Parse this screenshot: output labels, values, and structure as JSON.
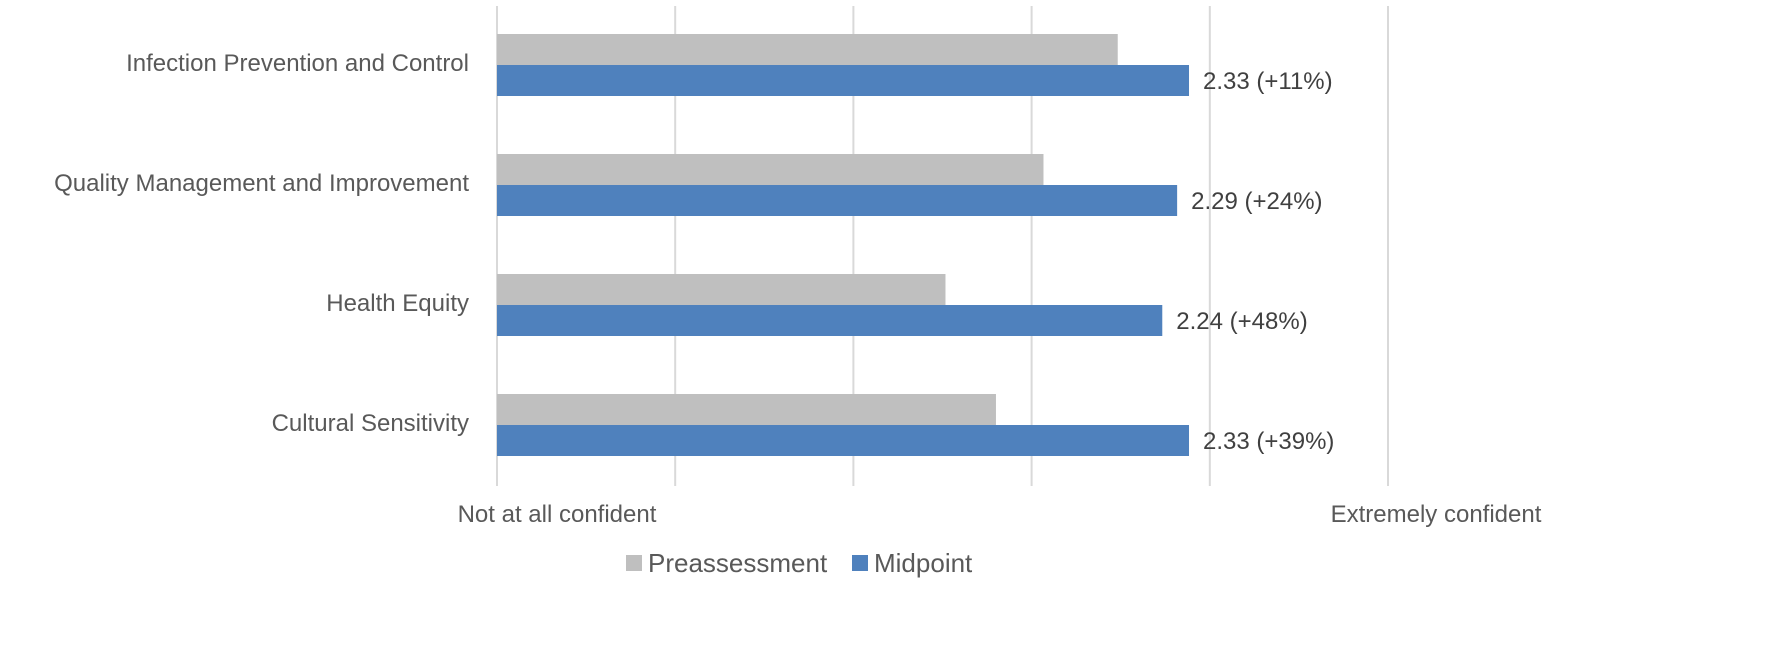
{
  "chart_data": {
    "type": "bar",
    "orientation": "horizontal",
    "categories": [
      "Infection Prevention and Control",
      "Quality Management and Improvement",
      "Health Equity",
      "Cultural Sensitivity"
    ],
    "series": [
      {
        "name": "Preassessment",
        "values": [
          2.09,
          1.84,
          1.51,
          1.68
        ],
        "color": "#bfbfbf"
      },
      {
        "name": "Midpoint",
        "values": [
          2.33,
          2.29,
          2.24,
          2.33
        ],
        "color": "#4f81bd"
      }
    ],
    "data_labels": {
      "Midpoint": [
        "2.33 (+11%)",
        "2.29 (+24%)",
        "2.24 (+48%)",
        "2.33 (+39%)"
      ]
    },
    "xlim": [
      0,
      3
    ],
    "x_tick_labels": {
      "min": "Not at all confident",
      "max": "Extremely confident"
    },
    "grid": true,
    "legend": {
      "position": "bottom",
      "entries": [
        "Preassessment",
        "Midpoint"
      ]
    }
  }
}
